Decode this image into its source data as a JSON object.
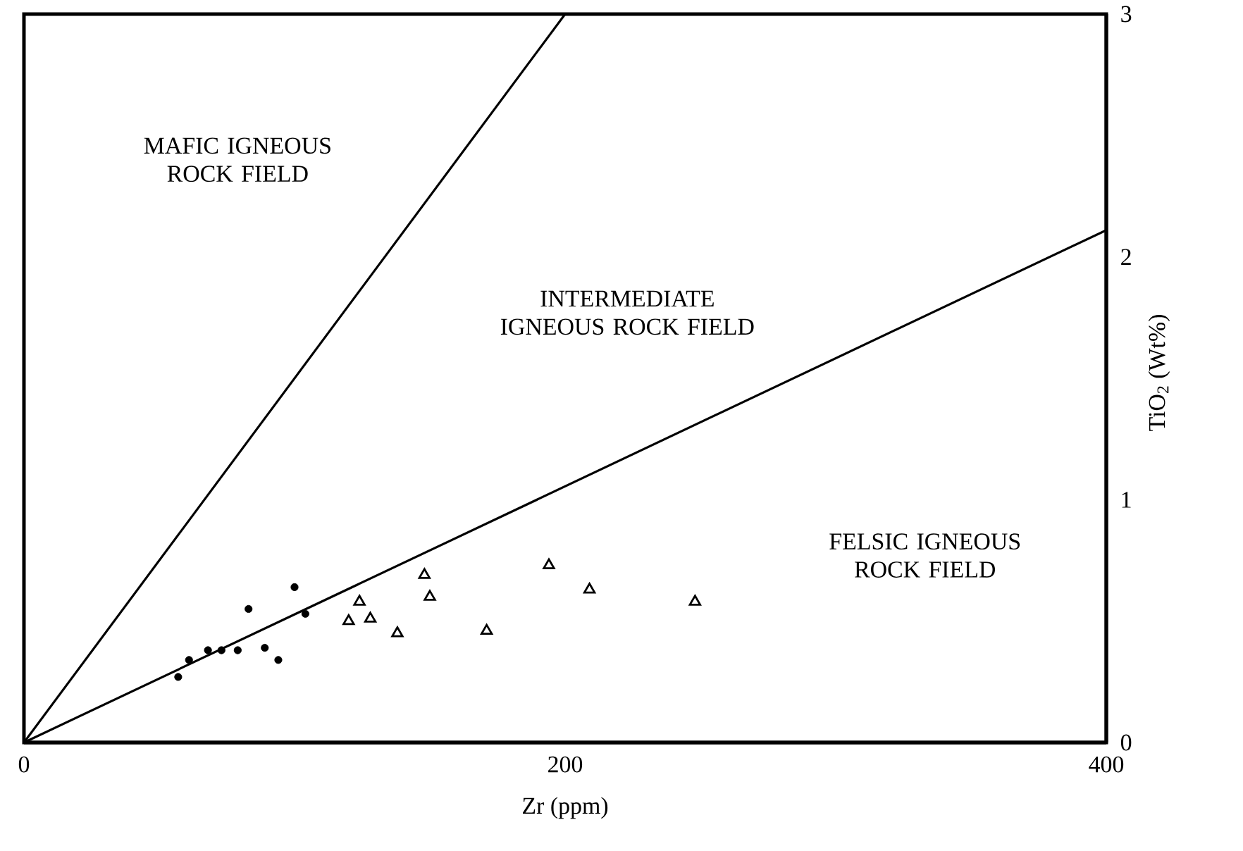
{
  "chart_data": {
    "type": "scatter",
    "xlabel": "Zr (ppm)",
    "ylabel": "TiO$_{2}$ (Wt%)",
    "xlim": [
      0,
      400
    ],
    "ylim": [
      0,
      3
    ],
    "xticks": [
      0,
      200,
      400
    ],
    "yticks": [
      0,
      1,
      2,
      3
    ],
    "grid": false,
    "annotations": [
      "MAFIC IGNEOUS ROCK FIELD",
      "INTERMEDIATE IGNEOUS ROCK FIELD",
      "FELSIC IGNEOUS ROCK FIELD"
    ],
    "series": [
      {
        "type": "line",
        "color": "#000000",
        "marker": "none",
        "x": [
          0,
          200
        ],
        "values": [
          0,
          3
        ]
      },
      {
        "type": "line",
        "color": "#000000",
        "marker": "none",
        "x": [
          0,
          400
        ],
        "values": [
          0,
          2.11
        ]
      },
      {
        "color": "#000000",
        "marker": "circle",
        "x": [
          57,
          61,
          68,
          73,
          79,
          83,
          89,
          94,
          100,
          104
        ],
        "values": [
          0.27,
          0.34,
          0.38,
          0.38,
          0.38,
          0.55,
          0.39,
          0.34,
          0.64,
          0.53
        ]
      },
      {
        "color": "#000000",
        "marker": "triangle",
        "x": [
          120,
          124,
          128,
          138,
          148,
          150,
          171,
          194,
          209,
          248
        ],
        "values": [
          0.5,
          0.58,
          0.51,
          0.45,
          0.69,
          0.6,
          0.46,
          0.73,
          0.63,
          0.58
        ]
      }
    ]
  }
}
